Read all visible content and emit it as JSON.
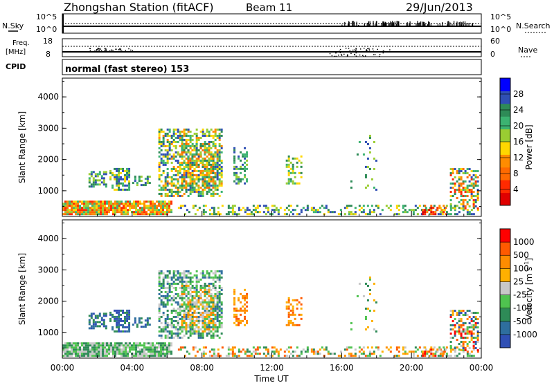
{
  "header": {
    "title": "Zhongshan Station (fitACF)",
    "beam": "Beam 11",
    "date": "29/Jun/2013"
  },
  "top_panels": {
    "nsky_label": "N.Sky",
    "nsky_ticks": [
      "10^5",
      "10^0"
    ],
    "nsearch_label": "N.Search",
    "nsearch_ticks": [
      "10^5",
      "10^0"
    ],
    "freq_label_1": "Freq.",
    "freq_label_2": "[MHz]",
    "freq_ticks": [
      "18",
      "8"
    ],
    "nave_label": "Nave",
    "nave_ticks": [
      "60",
      "0"
    ],
    "cpid_label": "CPID",
    "cpid_value": "normal (fast stereo) 153"
  },
  "colors": {
    "power": [
      "#0000ff",
      "#2f4fb4",
      "#2e8b57",
      "#3cb371",
      "#9acd32",
      "#ffd700",
      "#ff8c00",
      "#ff6a00",
      "#ff2a00",
      "#e00000"
    ],
    "velocity": [
      "#2f4fb4",
      "#2e6e9e",
      "#2e8b57",
      "#4fc34f",
      "#c8c8c8",
      "#ffb000",
      "#ff8c00",
      "#ff5a00",
      "#ff0000"
    ]
  },
  "chart_data": [
    {
      "type": "heatmap",
      "name": "power",
      "ylabel": "Slant Range [km]",
      "colorbar_label": "Power [dB]",
      "colorbar_ticks": [
        "28",
        "24",
        "20",
        "16",
        "12",
        "8",
        "4"
      ],
      "yticks": [
        "4000",
        "3000",
        "2000",
        "1000"
      ],
      "ylim": [
        180,
        4600
      ],
      "xlim_hours": [
        0,
        24
      ]
    },
    {
      "type": "heatmap",
      "name": "velocity",
      "ylabel": "Slant Range [km]",
      "colorbar_label": "Velocity [m s",
      "colorbar_label_sup": "-1",
      "colorbar_label_end": "]",
      "colorbar_ticks": [
        "1000",
        "500",
        "100",
        "25",
        "-25",
        "-100",
        "-500",
        "-1000"
      ],
      "yticks": [
        "4000",
        "3000",
        "2000",
        "1000"
      ],
      "ylim": [
        180,
        4600
      ],
      "xlim_hours": [
        0,
        24
      ]
    }
  ],
  "xaxis": {
    "label": "Time UT",
    "ticks": [
      "00:00",
      "04:00",
      "08:00",
      "12:00",
      "16:00",
      "20:00",
      "00:00"
    ]
  }
}
